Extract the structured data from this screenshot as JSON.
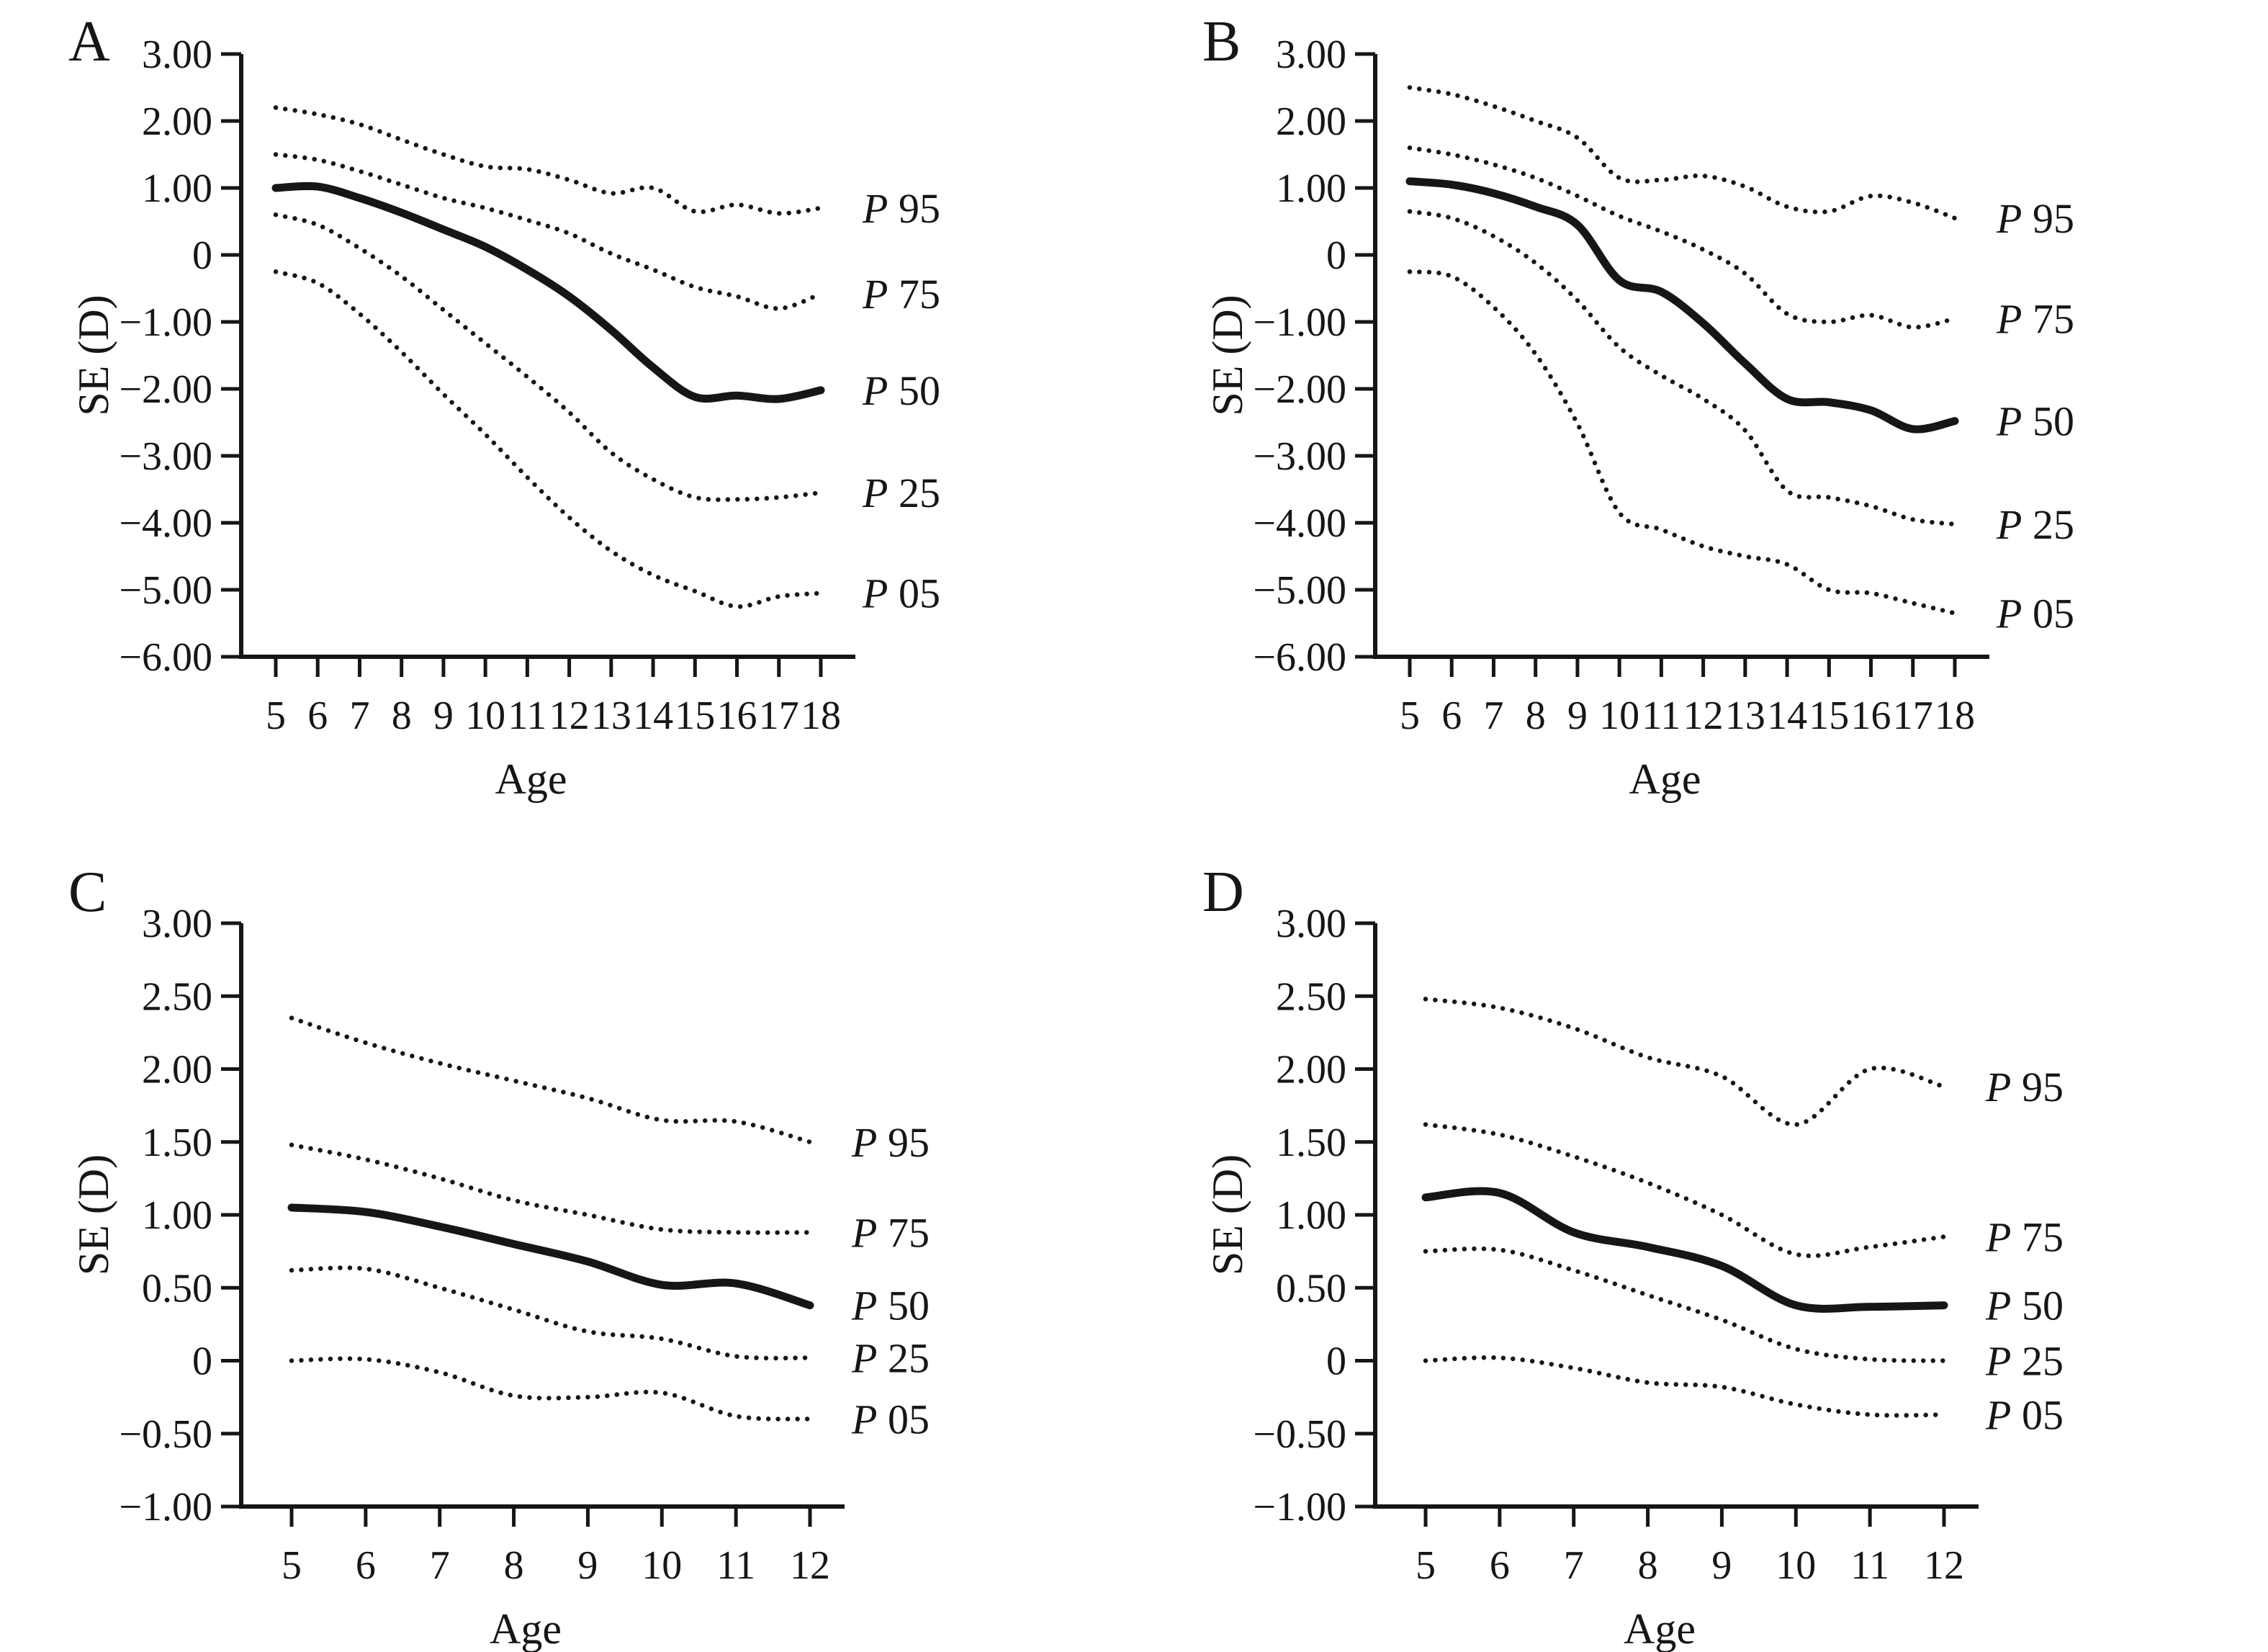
{
  "figure": {
    "panels": [
      {
        "letter": "A"
      },
      {
        "letter": "B"
      },
      {
        "letter": "C"
      },
      {
        "letter": "D"
      }
    ]
  },
  "chart_data": [
    {
      "type": "line",
      "panel": "A",
      "xlabel": "Age",
      "ylabel": "SE (D)",
      "x": [
        5,
        6,
        7,
        8,
        9,
        10,
        11,
        12,
        13,
        14,
        15,
        16,
        17,
        18
      ],
      "x_tick_labels": [
        "5",
        "6",
        "7",
        "8",
        "9",
        "10",
        "11",
        "12",
        "13",
        "14",
        "15",
        "16",
        "17",
        "18"
      ],
      "xlim": [
        5,
        18
      ],
      "ylim": [
        -6,
        3
      ],
      "y_tick_values": [
        3,
        2,
        1,
        0,
        -1,
        -2,
        -3,
        -4,
        -5,
        -6
      ],
      "y_tick_labels": [
        "3.00",
        "2.00",
        "1.00",
        "0",
        "−1.00",
        "−2.00",
        "−3.00",
        "−4.00",
        "−5.00",
        "−6.00"
      ],
      "grid": false,
      "legend_position": "right-of-curve-end",
      "series": [
        {
          "name": "P 95",
          "style": "dotted",
          "values": [
            2.2,
            2.1,
            1.95,
            1.72,
            1.5,
            1.32,
            1.28,
            1.12,
            0.92,
            1.0,
            0.65,
            0.75,
            0.62,
            0.7
          ]
        },
        {
          "name": "P 75",
          "style": "dotted",
          "values": [
            1.5,
            1.42,
            1.25,
            1.05,
            0.85,
            0.7,
            0.52,
            0.32,
            0.02,
            -0.22,
            -0.48,
            -0.62,
            -0.8,
            -0.58
          ]
        },
        {
          "name": "P 50",
          "style": "solid",
          "values": [
            1.0,
            1.02,
            0.85,
            0.63,
            0.38,
            0.12,
            -0.22,
            -0.62,
            -1.12,
            -1.68,
            -2.12,
            -2.1,
            -2.15,
            -2.02
          ]
        },
        {
          "name": "P 25",
          "style": "dotted",
          "values": [
            0.6,
            0.45,
            0.1,
            -0.32,
            -0.82,
            -1.32,
            -1.82,
            -2.35,
            -2.95,
            -3.35,
            -3.62,
            -3.65,
            -3.62,
            -3.55
          ]
        },
        {
          "name": "P 05",
          "style": "dotted",
          "values": [
            -0.25,
            -0.42,
            -0.88,
            -1.45,
            -2.08,
            -2.68,
            -3.32,
            -3.92,
            -4.42,
            -4.78,
            -5.02,
            -5.25,
            -5.1,
            -5.05
          ]
        }
      ]
    },
    {
      "type": "line",
      "panel": "B",
      "xlabel": "Age",
      "ylabel": "SE (D)",
      "x": [
        5,
        6,
        7,
        8,
        9,
        10,
        11,
        12,
        13,
        14,
        15,
        16,
        17,
        18
      ],
      "x_tick_labels": [
        "5",
        "6",
        "7",
        "8",
        "9",
        "10",
        "11",
        "12",
        "13",
        "14",
        "15",
        "16",
        "17",
        "18"
      ],
      "xlim": [
        5,
        18
      ],
      "ylim": [
        -6,
        3
      ],
      "y_tick_values": [
        3,
        2,
        1,
        0,
        -1,
        -2,
        -3,
        -4,
        -5,
        -6
      ],
      "y_tick_labels": [
        "3.00",
        "2.00",
        "1.00",
        "0",
        "−1.00",
        "−2.00",
        "−3.00",
        "−4.00",
        "−5.00",
        "−6.00"
      ],
      "grid": false,
      "legend_position": "right-of-curve-end",
      "series": [
        {
          "name": "P 95",
          "style": "dotted",
          "values": [
            2.5,
            2.4,
            2.22,
            2.0,
            1.75,
            1.15,
            1.12,
            1.18,
            1.02,
            0.72,
            0.65,
            0.88,
            0.78,
            0.55
          ]
        },
        {
          "name": "P 75",
          "style": "dotted",
          "values": [
            1.6,
            1.5,
            1.35,
            1.15,
            0.88,
            0.58,
            0.35,
            0.08,
            -0.28,
            -0.88,
            -1.0,
            -0.9,
            -1.08,
            -0.95
          ]
        },
        {
          "name": "P 50",
          "style": "solid",
          "values": [
            1.1,
            1.05,
            0.92,
            0.72,
            0.45,
            -0.38,
            -0.55,
            -1.02,
            -1.62,
            -2.15,
            -2.2,
            -2.32,
            -2.6,
            -2.48
          ]
        },
        {
          "name": "P 25",
          "style": "dotted",
          "values": [
            0.65,
            0.55,
            0.28,
            -0.12,
            -0.68,
            -1.38,
            -1.8,
            -2.15,
            -2.62,
            -3.52,
            -3.62,
            -3.75,
            -3.95,
            -4.02
          ]
        },
        {
          "name": "P 05",
          "style": "dotted",
          "values": [
            -0.25,
            -0.32,
            -0.78,
            -1.48,
            -2.52,
            -3.85,
            -4.1,
            -4.35,
            -4.5,
            -4.62,
            -5.0,
            -5.05,
            -5.2,
            -5.35
          ]
        }
      ]
    },
    {
      "type": "line",
      "panel": "C",
      "xlabel": "Age",
      "ylabel": "SE (D)",
      "x": [
        5,
        6,
        7,
        8,
        9,
        10,
        11,
        12
      ],
      "x_tick_labels": [
        "5",
        "6",
        "7",
        "8",
        "9",
        "10",
        "11",
        "12"
      ],
      "xlim": [
        5,
        12
      ],
      "ylim": [
        -1,
        3
      ],
      "y_tick_values": [
        3,
        2.5,
        2,
        1.5,
        1,
        0.5,
        0,
        -0.5,
        -1
      ],
      "y_tick_labels": [
        "3.00",
        "2.50",
        "2.00",
        "1.50",
        "1.00",
        "0.50",
        "0",
        "−0.50",
        "−1.00"
      ],
      "grid": false,
      "legend_position": "right-of-curve-end",
      "series": [
        {
          "name": "P 95",
          "style": "dotted",
          "values": [
            2.35,
            2.18,
            2.04,
            1.92,
            1.8,
            1.65,
            1.64,
            1.5
          ]
        },
        {
          "name": "P 75",
          "style": "dotted",
          "values": [
            1.48,
            1.38,
            1.25,
            1.1,
            1.0,
            0.9,
            0.88,
            0.88
          ]
        },
        {
          "name": "P 50",
          "style": "solid",
          "values": [
            1.05,
            1.02,
            0.92,
            0.8,
            0.68,
            0.52,
            0.53,
            0.38
          ]
        },
        {
          "name": "P 25",
          "style": "dotted",
          "values": [
            0.62,
            0.63,
            0.5,
            0.35,
            0.2,
            0.15,
            0.03,
            0.02
          ]
        },
        {
          "name": "P 05",
          "style": "dotted",
          "values": [
            0.0,
            0.01,
            -0.08,
            -0.24,
            -0.25,
            -0.22,
            -0.38,
            -0.4
          ]
        }
      ]
    },
    {
      "type": "line",
      "panel": "D",
      "xlabel": "Age",
      "ylabel": "SE (D)",
      "x": [
        5,
        6,
        7,
        8,
        9,
        10,
        11,
        12
      ],
      "x_tick_labels": [
        "5",
        "6",
        "7",
        "8",
        "9",
        "10",
        "11",
        "12"
      ],
      "xlim": [
        5,
        12
      ],
      "ylim": [
        -1,
        3
      ],
      "y_tick_values": [
        3,
        2.5,
        2,
        1.5,
        1,
        0.5,
        0,
        -0.5,
        -1
      ],
      "y_tick_labels": [
        "3.00",
        "2.50",
        "2.00",
        "1.50",
        "1.00",
        "0.50",
        "0",
        "−0.50",
        "−1.00"
      ],
      "grid": false,
      "legend_position": "right-of-curve-end",
      "series": [
        {
          "name": "P 95",
          "style": "dotted",
          "values": [
            2.48,
            2.42,
            2.28,
            2.08,
            1.95,
            1.62,
            2.0,
            1.88
          ]
        },
        {
          "name": "P 75",
          "style": "dotted",
          "values": [
            1.62,
            1.55,
            1.4,
            1.22,
            1.0,
            0.73,
            0.78,
            0.85
          ]
        },
        {
          "name": "P 50",
          "style": "solid",
          "values": [
            1.12,
            1.15,
            0.88,
            0.78,
            0.65,
            0.38,
            0.37,
            0.38
          ]
        },
        {
          "name": "P 25",
          "style": "dotted",
          "values": [
            0.75,
            0.76,
            0.62,
            0.45,
            0.28,
            0.08,
            0.01,
            0.0
          ]
        },
        {
          "name": "P 05",
          "style": "dotted",
          "values": [
            0.0,
            0.02,
            -0.05,
            -0.15,
            -0.18,
            -0.3,
            -0.37,
            -0.37
          ]
        }
      ]
    }
  ]
}
